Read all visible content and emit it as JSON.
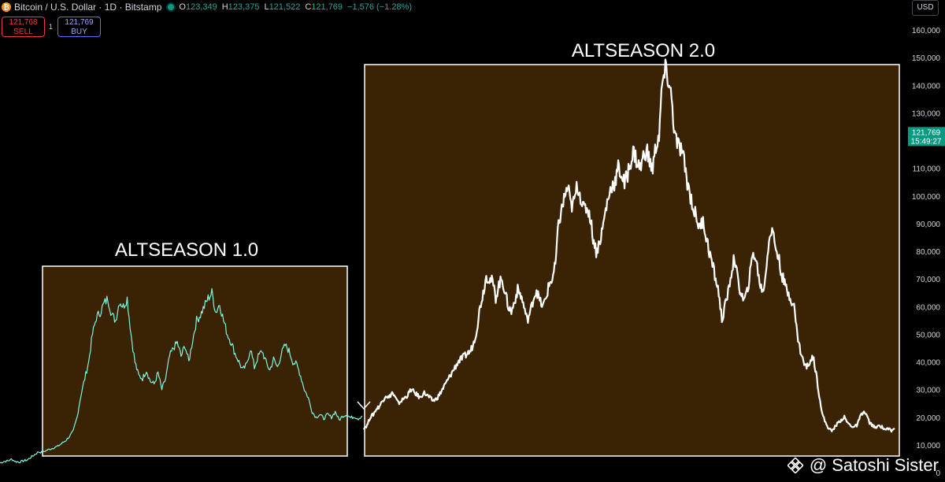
{
  "header": {
    "symbol": "Bitcoin / U.S. Dollar · 1D · Bitstamp",
    "ohlc": [
      {
        "key": "O",
        "value": "123,349"
      },
      {
        "key": "H",
        "value": "123,375"
      },
      {
        "key": "L",
        "value": "121,522"
      },
      {
        "key": "C",
        "value": "121,769"
      }
    ],
    "change": "−1,576 (−1.28%)"
  },
  "trade": {
    "sell_price": "121,768",
    "sell_label": "SELL",
    "quantity": "1",
    "buy_price": "121,769",
    "buy_label": "BUY"
  },
  "currency": "USD",
  "price_tag": {
    "value": "121,769",
    "time": "15:49:27",
    "color": "#089981"
  },
  "watermark": "@ Satoshi Sister",
  "colors": {
    "box_fill": "#3a2204",
    "box_stroke": "#ffffff",
    "line1": "#7ff5e0",
    "line2": "#ffffff",
    "axis_text": "#d1d4dc"
  },
  "chart_data": {
    "type": "line",
    "ylim": [
      0,
      160000
    ],
    "y_ticks": [
      0,
      10000,
      20000,
      30000,
      40000,
      50000,
      60000,
      70000,
      80000,
      90000,
      100000,
      110000,
      120000,
      130000,
      140000,
      150000,
      160000
    ],
    "y_tick_labels": [
      "0",
      "10,000",
      "20,000",
      "30,000",
      "40,000",
      "50,000",
      "60,000",
      "70,000",
      "80,000",
      "90,000",
      "100,000",
      "110,000",
      "120,000",
      "130,000",
      "140,000",
      "150,000",
      "160,000"
    ],
    "annotations": [
      {
        "label": "ALTSEASON 1.0",
        "y_range": [
          0,
          65000
        ]
      },
      {
        "label": "ALTSEASON 2.0",
        "y_range": [
          0,
          142000
        ]
      }
    ],
    "series": [
      {
        "color": "#7ff5e0",
        "values": [
          3500,
          4000,
          4200,
          4800,
          4000,
          3800,
          4200,
          4500,
          5500,
          6500,
          7500,
          7200,
          8000,
          8500,
          9000,
          9500,
          10500,
          11500,
          13000,
          15000,
          20000,
          28000,
          34000,
          40000,
          50000,
          56000,
          58000,
          61000,
          63000,
          57000,
          55000,
          62000,
          60000,
          63000,
          50000,
          40000,
          35000,
          34000,
          37000,
          33000,
          32000,
          36000,
          30000,
          34000,
          42000,
          45000,
          47000,
          42000,
          46000,
          40000,
          48000,
          55000,
          57000,
          60000,
          63000,
          65000,
          58000,
          61000,
          55000,
          50000,
          47000,
          43000,
          40000,
          37000,
          39000,
          45000,
          38000,
          42000,
          44000,
          40000,
          37000,
          41000,
          38000,
          43000,
          46000,
          44000,
          40000,
          39000,
          35000,
          30000,
          27000,
          22000,
          20000,
          21000,
          19500,
          21000,
          20000,
          22000,
          19000,
          20500,
          21000,
          19800,
          20200,
          19500,
          20500
        ]
      },
      {
        "color": "#ffffff",
        "values": [
          16000,
          17000,
          20000,
          21000,
          23000,
          24000,
          26000,
          28000,
          27000,
          29000,
          27000,
          25000,
          26000,
          27000,
          28000,
          30000,
          29000,
          28000,
          27000,
          29000,
          28000,
          27000,
          26000,
          26500,
          28000,
          30000,
          32000,
          34000,
          36000,
          38000,
          40000,
          41000,
          42000,
          43000,
          44000,
          47000,
          52000,
          60000,
          65000,
          71000,
          70000,
          69000,
          63000,
          68000,
          70000,
          65000,
          60000,
          58000,
          62000,
          66000,
          64000,
          60000,
          55000,
          58000,
          63000,
          66000,
          62000,
          60000,
          63000,
          68000,
          70000,
          75000,
          90000,
          95000,
          100000,
          103000,
          96000,
          98000,
          104000,
          100000,
          95000,
          96000,
          93000,
          85000,
          80000,
          83000,
          88000,
          95000,
          100000,
          104000,
          105000,
          110000,
          108000,
          104000,
          108000,
          113000,
          116000,
          112000,
          110000,
          114000,
          117000,
          112000,
          110000,
          118000,
          122000,
          140000,
          145000,
          142000,
          135000,
          122000,
          118000,
          117000,
          112000,
          105000,
          100000,
          95000,
          92000,
          88000,
          92000,
          85000,
          80000,
          75000,
          70000,
          65000,
          55000,
          60000,
          65000,
          72000,
          78000,
          70000,
          65000,
          62000,
          65000,
          72000,
          80000,
          76000,
          69000,
          65000,
          72000,
          85000,
          88000,
          82000,
          78000,
          72000,
          68000,
          65000,
          63000,
          60000,
          50000,
          44000,
          40000,
          38000,
          40000,
          42000,
          36000,
          28000,
          21000,
          18000,
          16000,
          15000,
          16500,
          18000,
          19000,
          20000,
          18000,
          17000,
          16500,
          17000,
          20000,
          22000,
          21000,
          18000,
          17000,
          16000,
          17000,
          16500,
          15500,
          16000,
          15000,
          16000
        ]
      }
    ]
  }
}
